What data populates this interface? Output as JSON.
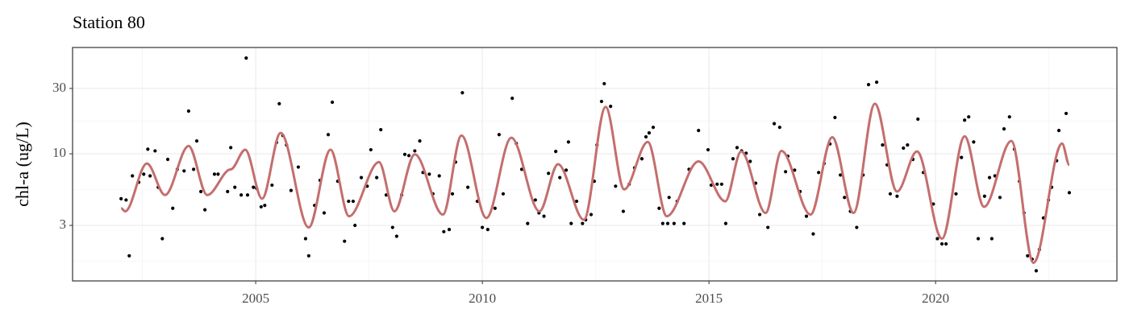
{
  "chart_data": {
    "type": "scatter",
    "title": "Station 80",
    "y_label": "chl-a (ug/L)",
    "log_y": true,
    "grid": true,
    "color": "#000000",
    "xlim": [
      2000.96,
      2024.0
    ],
    "xticks": [
      2005,
      2010,
      2015,
      2020
    ],
    "x_minor_ticks": [
      2002.5,
      2007.5,
      2012.5,
      2017.5,
      2022.5
    ],
    "ylim": [
      1.18,
      59.7
    ],
    "yticks": [
      3,
      10,
      30
    ],
    "y_minor_ticks": [
      1.64,
      5.48,
      17.3
    ],
    "x": [
      2002.03,
      2002.14,
      2002.21,
      2002.28,
      2002.42,
      2002.53,
      2002.62,
      2002.67,
      2002.78,
      2002.85,
      2002.94,
      2003.06,
      2003.17,
      2003.27,
      2003.42,
      2003.52,
      2003.63,
      2003.7,
      2003.79,
      2003.88,
      2004.09,
      2004.17,
      2004.38,
      2004.45,
      2004.54,
      2004.68,
      2004.79,
      2004.82,
      2004.95,
      2005.02,
      2005.12,
      2005.2,
      2005.36,
      2005.46,
      2005.52,
      2005.6,
      2005.68,
      2005.78,
      2005.94,
      2006.1,
      2006.17,
      2006.3,
      2006.42,
      2006.51,
      2006.6,
      2006.69,
      2006.81,
      2006.96,
      2007.05,
      2007.15,
      2007.19,
      2007.33,
      2007.46,
      2007.54,
      2007.67,
      2007.76,
      2007.88,
      2008.02,
      2008.11,
      2008.22,
      2008.29,
      2008.38,
      2008.51,
      2008.62,
      2008.69,
      2008.83,
      2008.91,
      2009.05,
      2009.15,
      2009.27,
      2009.34,
      2009.41,
      2009.56,
      2009.68,
      2009.89,
      2010.0,
      2010.12,
      2010.28,
      2010.37,
      2010.46,
      2010.66,
      2010.75,
      2010.87,
      2011.0,
      2011.17,
      2011.25,
      2011.36,
      2011.46,
      2011.62,
      2011.71,
      2011.85,
      2011.9,
      2011.96,
      2012.08,
      2012.21,
      2012.28,
      2012.4,
      2012.47,
      2012.53,
      2012.63,
      2012.69,
      2012.83,
      2012.94,
      2013.11,
      2013.24,
      2013.36,
      2013.52,
      2013.61,
      2013.68,
      2013.77,
      2013.9,
      2013.98,
      2014.09,
      2014.12,
      2014.23,
      2014.3,
      2014.45,
      2014.56,
      2014.77,
      2014.98,
      2015.05,
      2015.18,
      2015.28,
      2015.37,
      2015.53,
      2015.62,
      2015.72,
      2015.82,
      2015.91,
      2016.03,
      2016.12,
      2016.3,
      2016.44,
      2016.56,
      2016.69,
      2016.74,
      2016.89,
      2017.01,
      2017.15,
      2017.3,
      2017.42,
      2017.54,
      2017.67,
      2017.78,
      2017.9,
      2017.99,
      2018.12,
      2018.26,
      2018.4,
      2018.52,
      2018.7,
      2018.83,
      2018.93,
      2019.0,
      2019.15,
      2019.29,
      2019.38,
      2019.5,
      2019.61,
      2019.73,
      2019.95,
      2020.04,
      2020.14,
      2020.23,
      2020.45,
      2020.57,
      2020.64,
      2020.73,
      2020.84,
      2020.94,
      2021.08,
      2021.19,
      2021.24,
      2021.31,
      2021.42,
      2021.51,
      2021.63,
      2021.74,
      2021.85,
      2021.95,
      2022.03,
      2022.13,
      2022.22,
      2022.29,
      2022.38,
      2022.49,
      2022.56,
      2022.67,
      2022.72,
      2022.88,
      2022.95
    ],
    "values": [
      4.7,
      4.6,
      1.8,
      6.9,
      6.2,
      7.1,
      10.8,
      6.9,
      10.5,
      5.7,
      2.4,
      9.1,
      4.0,
      7.7,
      7.5,
      20.5,
      7.7,
      12.4,
      5.3,
      3.9,
      7.1,
      7.1,
      5.3,
      11.1,
      5.7,
      5.0,
      50.0,
      5.0,
      5.7,
      5.6,
      4.1,
      4.2,
      5.9,
      12.1,
      23.2,
      13.6,
      11.6,
      5.4,
      8.0,
      2.4,
      1.8,
      4.2,
      6.4,
      3.7,
      13.8,
      23.8,
      6.3,
      2.3,
      4.5,
      4.5,
      3.0,
      6.7,
      5.8,
      10.7,
      6.7,
      15.0,
      5.0,
      2.9,
      2.5,
      5.0,
      9.9,
      9.7,
      10.5,
      12.4,
      7.3,
      7.1,
      5.1,
      6.9,
      2.7,
      2.8,
      5.1,
      8.7,
      27.9,
      5.7,
      4.5,
      2.9,
      2.8,
      4.0,
      13.8,
      5.1,
      25.4,
      11.9,
      7.7,
      3.1,
      4.6,
      3.7,
      3.5,
      7.2,
      10.4,
      6.7,
      7.6,
      12.2,
      3.1,
      4.5,
      3.1,
      3.3,
      3.6,
      6.3,
      11.6,
      24.1,
      32.5,
      22.2,
      5.8,
      3.8,
      6.0,
      7.9,
      9.2,
      13.3,
      14.2,
      15.6,
      4.0,
      3.1,
      3.1,
      4.8,
      3.1,
      4.5,
      3.1,
      7.7,
      14.8,
      10.7,
      5.9,
      6.0,
      6.0,
      3.1,
      9.2,
      11.1,
      10.5,
      10.1,
      8.8,
      6.1,
      3.6,
      2.9,
      16.6,
      15.6,
      7.4,
      9.6,
      7.6,
      5.3,
      3.5,
      2.6,
      7.3,
      8.5,
      11.8,
      18.4,
      7.0,
      4.8,
      3.8,
      2.9,
      7.0,
      32.0,
      33.3,
      11.6,
      8.3,
      5.1,
      4.9,
      11.0,
      11.6,
      9.1,
      17.9,
      7.3,
      4.3,
      2.4,
      2.2,
      2.2,
      5.1,
      9.4,
      17.6,
      18.6,
      12.2,
      2.4,
      4.9,
      6.7,
      2.4,
      6.9,
      4.8,
      15.2,
      18.6,
      10.8,
      6.3,
      3.7,
      1.8,
      1.7,
      1.4,
      2.0,
      3.4,
      4.6,
      5.7,
      8.9,
      14.8,
      19.7,
      5.2
    ],
    "smooth": {
      "color": "#c46e6e",
      "x": [
        2002.03,
        2002.12,
        2002.6,
        2003.0,
        2003.52,
        2003.93,
        2004.45,
        2004.77,
        2005.14,
        2005.55,
        2006.17,
        2006.65,
        2007.06,
        2007.72,
        2008.06,
        2008.51,
        2009.13,
        2009.54,
        2010.09,
        2010.64,
        2011.26,
        2011.67,
        2012.24,
        2012.72,
        2013.13,
        2013.65,
        2014.07,
        2014.77,
        2015.36,
        2015.71,
        2016.25,
        2016.6,
        2017.24,
        2017.72,
        2018.19,
        2018.66,
        2019.15,
        2019.59,
        2020.14,
        2020.64,
        2021.07,
        2021.67,
        2022.16,
        2022.79,
        2022.95
      ],
      "values": [
        4.0,
        3.8,
        8.5,
        5.0,
        11.4,
        5.0,
        7.7,
        10.7,
        4.7,
        14.2,
        2.9,
        10.7,
        3.5,
        8.7,
        3.8,
        9.9,
        3.6,
        13.6,
        3.4,
        13.1,
        3.8,
        8.4,
        3.3,
        22.0,
        5.5,
        12.2,
        3.5,
        8.8,
        4.5,
        10.4,
        3.7,
        10.5,
        3.6,
        13.2,
        3.7,
        23.2,
        5.3,
        10.4,
        2.4,
        13.4,
        4.1,
        12.4,
        1.6,
        11.9,
        8.3
      ]
    }
  }
}
